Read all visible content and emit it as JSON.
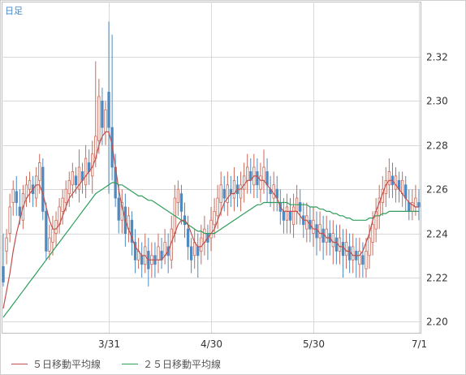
{
  "period_label": "日足",
  "legend": [
    {
      "label": "５日移動平均線",
      "color": "#c0504d"
    },
    {
      "label": "２５日移動平均線",
      "color": "#2e9e5a"
    }
  ],
  "colors": {
    "up": "#c86a5a",
    "down": "#4f8ac0",
    "ma5": "#c0504d",
    "ma25": "#2e9e5a",
    "grid": "#d9d9d9",
    "axis_text": "#333333"
  },
  "chart_data": {
    "type": "candlestick",
    "ylim": [
      2.195,
      2.345
    ],
    "yticks": [
      "2.20",
      "2.22",
      "2.24",
      "2.26",
      "2.28",
      "2.30",
      "2.32"
    ],
    "xticks": [
      {
        "label": "3/31",
        "index": 32
      },
      {
        "label": "4/30",
        "index": 63
      },
      {
        "label": "5/30",
        "index": 94
      },
      {
        "label": "7/1",
        "index": 126
      }
    ],
    "candles": [
      [
        2.225,
        2.218,
        2.24,
        2.216
      ],
      [
        2.232,
        2.238,
        2.242,
        2.226
      ],
      [
        2.24,
        2.252,
        2.258,
        2.236
      ],
      [
        2.254,
        2.26,
        2.264,
        2.248
      ],
      [
        2.259,
        2.254,
        2.266,
        2.248
      ],
      [
        2.252,
        2.248,
        2.26,
        2.244
      ],
      [
        2.246,
        2.258,
        2.262,
        2.242
      ],
      [
        2.256,
        2.262,
        2.266,
        2.252
      ],
      [
        2.26,
        2.264,
        2.268,
        2.254
      ],
      [
        2.262,
        2.258,
        2.266,
        2.252
      ],
      [
        2.256,
        2.266,
        2.27,
        2.252
      ],
      [
        2.264,
        2.272,
        2.276,
        2.258
      ],
      [
        2.27,
        2.25,
        2.274,
        2.246
      ],
      [
        2.25,
        2.232,
        2.254,
        2.228
      ],
      [
        2.232,
        2.238,
        2.244,
        2.228
      ],
      [
        2.236,
        2.242,
        2.248,
        2.23
      ],
      [
        2.24,
        2.246,
        2.25,
        2.234
      ],
      [
        2.244,
        2.252,
        2.256,
        2.24
      ],
      [
        2.25,
        2.256,
        2.26,
        2.244
      ],
      [
        2.254,
        2.26,
        2.264,
        2.25
      ],
      [
        2.258,
        2.264,
        2.268,
        2.252
      ],
      [
        2.262,
        2.268,
        2.272,
        2.256
      ],
      [
        2.266,
        2.262,
        2.27,
        2.258
      ],
      [
        2.26,
        2.27,
        2.278,
        2.254
      ],
      [
        2.268,
        2.264,
        2.272,
        2.258
      ],
      [
        2.262,
        2.274,
        2.28,
        2.256
      ],
      [
        2.272,
        2.268,
        2.278,
        2.262
      ],
      [
        2.266,
        2.276,
        2.282,
        2.258
      ],
      [
        2.274,
        2.284,
        2.318,
        2.27
      ],
      [
        2.282,
        2.302,
        2.31,
        2.276
      ],
      [
        2.3,
        2.288,
        2.306,
        2.28
      ],
      [
        2.286,
        2.296,
        2.3,
        2.28
      ],
      [
        2.304,
        2.288,
        2.336,
        2.258
      ],
      [
        2.288,
        2.27,
        2.33,
        2.264
      ],
      [
        2.27,
        2.256,
        2.276,
        2.252
      ],
      [
        2.256,
        2.246,
        2.262,
        2.24
      ],
      [
        2.246,
        2.254,
        2.26,
        2.24
      ],
      [
        2.252,
        2.24,
        2.258,
        2.234
      ],
      [
        2.242,
        2.248,
        2.252,
        2.236
      ],
      [
        2.246,
        2.236,
        2.25,
        2.23
      ],
      [
        2.236,
        2.228,
        2.242,
        2.222
      ],
      [
        2.228,
        2.232,
        2.238,
        2.224
      ],
      [
        2.23,
        2.226,
        2.236,
        2.22
      ],
      [
        2.226,
        2.234,
        2.24,
        2.222
      ],
      [
        2.232,
        2.224,
        2.238,
        2.216
      ],
      [
        2.226,
        2.23,
        2.236,
        2.22
      ],
      [
        2.23,
        2.226,
        2.236,
        2.22
      ],
      [
        2.228,
        2.234,
        2.24,
        2.222
      ],
      [
        2.232,
        2.228,
        2.238,
        2.224
      ],
      [
        2.23,
        2.236,
        2.242,
        2.226
      ],
      [
        2.234,
        2.23,
        2.24,
        2.222
      ],
      [
        2.228,
        2.242,
        2.248,
        2.224
      ],
      [
        2.24,
        2.256,
        2.262,
        2.236
      ],
      [
        2.254,
        2.26,
        2.264,
        2.248
      ],
      [
        2.258,
        2.25,
        2.262,
        2.244
      ],
      [
        2.248,
        2.244,
        2.254,
        2.238
      ],
      [
        2.242,
        2.234,
        2.248,
        2.228
      ],
      [
        2.234,
        2.228,
        2.238,
        2.222
      ],
      [
        2.23,
        2.236,
        2.242,
        2.224
      ],
      [
        2.234,
        2.23,
        2.24,
        2.22
      ],
      [
        2.232,
        2.238,
        2.244,
        2.226
      ],
      [
        2.236,
        2.242,
        2.248,
        2.23
      ],
      [
        2.24,
        2.236,
        2.244,
        2.228
      ],
      [
        2.238,
        2.246,
        2.252,
        2.232
      ],
      [
        2.244,
        2.25,
        2.256,
        2.238
      ],
      [
        2.248,
        2.256,
        2.262,
        2.242
      ],
      [
        2.254,
        2.262,
        2.268,
        2.248
      ],
      [
        2.26,
        2.256,
        2.266,
        2.25
      ],
      [
        2.254,
        2.262,
        2.268,
        2.248
      ],
      [
        2.26,
        2.258,
        2.266,
        2.252
      ],
      [
        2.256,
        2.264,
        2.27,
        2.25
      ],
      [
        2.262,
        2.258,
        2.266,
        2.252
      ],
      [
        2.256,
        2.262,
        2.268,
        2.25
      ],
      [
        2.26,
        2.266,
        2.272,
        2.254
      ],
      [
        2.264,
        2.27,
        2.276,
        2.258
      ],
      [
        2.268,
        2.264,
        2.274,
        2.258
      ],
      [
        2.262,
        2.27,
        2.276,
        2.256
      ],
      [
        2.268,
        2.262,
        2.274,
        2.256
      ],
      [
        2.26,
        2.266,
        2.272,
        2.254
      ],
      [
        2.264,
        2.27,
        2.278,
        2.258
      ],
      [
        2.268,
        2.262,
        2.274,
        2.254
      ],
      [
        2.26,
        2.258,
        2.266,
        2.252
      ],
      [
        2.256,
        2.262,
        2.268,
        2.25
      ],
      [
        2.26,
        2.256,
        2.266,
        2.25
      ],
      [
        2.254,
        2.25,
        2.26,
        2.244
      ],
      [
        2.25,
        2.246,
        2.256,
        2.24
      ],
      [
        2.246,
        2.252,
        2.258,
        2.24
      ],
      [
        2.25,
        2.246,
        2.256,
        2.24
      ],
      [
        2.244,
        2.252,
        2.258,
        2.238
      ],
      [
        2.25,
        2.256,
        2.262,
        2.244
      ],
      [
        2.254,
        2.25,
        2.26,
        2.244
      ],
      [
        2.248,
        2.244,
        2.254,
        2.238
      ],
      [
        2.242,
        2.248,
        2.254,
        2.236
      ],
      [
        2.246,
        2.242,
        2.252,
        2.236
      ],
      [
        2.24,
        2.246,
        2.252,
        2.234
      ],
      [
        2.244,
        2.238,
        2.25,
        2.23
      ],
      [
        2.238,
        2.244,
        2.25,
        2.232
      ],
      [
        2.242,
        2.236,
        2.248,
        2.228
      ],
      [
        2.236,
        2.242,
        2.248,
        2.23
      ],
      [
        2.24,
        2.236,
        2.246,
        2.23
      ],
      [
        2.234,
        2.24,
        2.246,
        2.226
      ],
      [
        2.238,
        2.232,
        2.244,
        2.226
      ],
      [
        2.232,
        2.238,
        2.244,
        2.226
      ],
      [
        2.236,
        2.23,
        2.242,
        2.22
      ],
      [
        2.23,
        2.236,
        2.242,
        2.224
      ],
      [
        2.234,
        2.228,
        2.24,
        2.222
      ],
      [
        2.228,
        2.234,
        2.24,
        2.222
      ],
      [
        2.232,
        2.228,
        2.238,
        2.22
      ],
      [
        2.226,
        2.232,
        2.238,
        2.22
      ],
      [
        2.23,
        2.226,
        2.236,
        2.22
      ],
      [
        2.224,
        2.232,
        2.238,
        2.22
      ],
      [
        2.23,
        2.238,
        2.244,
        2.224
      ],
      [
        2.236,
        2.244,
        2.25,
        2.23
      ],
      [
        2.242,
        2.25,
        2.256,
        2.236
      ],
      [
        2.248,
        2.256,
        2.262,
        2.242
      ],
      [
        2.254,
        2.26,
        2.266,
        2.248
      ],
      [
        2.258,
        2.264,
        2.27,
        2.252
      ],
      [
        2.262,
        2.268,
        2.274,
        2.256
      ],
      [
        2.266,
        2.262,
        2.272,
        2.256
      ],
      [
        2.26,
        2.266,
        2.27,
        2.254
      ],
      [
        2.264,
        2.26,
        2.268,
        2.254
      ],
      [
        2.258,
        2.264,
        2.268,
        2.252
      ],
      [
        2.262,
        2.256,
        2.266,
        2.25
      ],
      [
        2.254,
        2.25,
        2.26,
        2.246
      ],
      [
        2.25,
        2.254,
        2.26,
        2.246
      ],
      [
        2.252,
        2.256,
        2.262,
        2.248
      ],
      [
        2.254,
        2.252,
        2.26,
        2.246
      ]
    ],
    "ma5": [
      2.206,
      2.214,
      2.222,
      2.232,
      2.24,
      2.246,
      2.252,
      2.256,
      2.258,
      2.26,
      2.262,
      2.262,
      2.258,
      2.252,
      2.246,
      2.242,
      2.242,
      2.244,
      2.248,
      2.252,
      2.256,
      2.258,
      2.26,
      2.262,
      2.264,
      2.266,
      2.268,
      2.27,
      2.274,
      2.28,
      2.284,
      2.286,
      2.286,
      2.28,
      2.27,
      2.26,
      2.252,
      2.246,
      2.242,
      2.238,
      2.234,
      2.232,
      2.23,
      2.23,
      2.228,
      2.228,
      2.228,
      2.228,
      2.228,
      2.23,
      2.232,
      2.236,
      2.24,
      2.244,
      2.246,
      2.246,
      2.244,
      2.24,
      2.236,
      2.234,
      2.234,
      2.236,
      2.238,
      2.24,
      2.242,
      2.246,
      2.25,
      2.254,
      2.256,
      2.258,
      2.258,
      2.26,
      2.26,
      2.262,
      2.264,
      2.264,
      2.266,
      2.266,
      2.264,
      2.264,
      2.262,
      2.26,
      2.258,
      2.256,
      2.252,
      2.25,
      2.25,
      2.25,
      2.25,
      2.25,
      2.248,
      2.246,
      2.246,
      2.244,
      2.242,
      2.242,
      2.24,
      2.24,
      2.238,
      2.238,
      2.236,
      2.236,
      2.234,
      2.234,
      2.232,
      2.232,
      2.23,
      2.23,
      2.23,
      2.232,
      2.236,
      2.24,
      2.246,
      2.25,
      2.254,
      2.258,
      2.262,
      2.264,
      2.264,
      2.262,
      2.26,
      2.258,
      2.256,
      2.254,
      2.253,
      2.252,
      2.252
    ],
    "ma25": [
      2.202,
      2.204,
      2.206,
      2.208,
      2.21,
      2.212,
      2.214,
      2.216,
      2.218,
      2.22,
      2.222,
      2.224,
      2.226,
      2.228,
      2.23,
      2.232,
      2.234,
      2.236,
      2.238,
      2.24,
      2.242,
      2.244,
      2.246,
      2.248,
      2.25,
      2.252,
      2.254,
      2.256,
      2.258,
      2.259,
      2.26,
      2.261,
      2.262,
      2.263,
      2.263,
      2.262,
      2.262,
      2.261,
      2.26,
      2.259,
      2.258,
      2.257,
      2.257,
      2.256,
      2.255,
      2.255,
      2.254,
      2.253,
      2.252,
      2.251,
      2.25,
      2.249,
      2.248,
      2.247,
      2.246,
      2.245,
      2.244,
      2.243,
      2.242,
      2.241,
      2.241,
      2.24,
      2.24,
      2.24,
      2.24,
      2.241,
      2.242,
      2.243,
      2.244,
      2.245,
      2.246,
      2.247,
      2.248,
      2.249,
      2.25,
      2.251,
      2.252,
      2.253,
      2.253,
      2.254,
      2.254,
      2.254,
      2.254,
      2.254,
      2.254,
      2.254,
      2.254,
      2.253,
      2.253,
      2.253,
      2.253,
      2.253,
      2.253,
      2.252,
      2.252,
      2.252,
      2.251,
      2.251,
      2.25,
      2.25,
      2.249,
      2.249,
      2.248,
      2.248,
      2.247,
      2.247,
      2.246,
      2.246,
      2.246,
      2.246,
      2.246,
      2.247,
      2.247,
      2.248,
      2.248,
      2.249,
      2.249,
      2.25,
      2.25,
      2.25,
      2.25,
      2.25,
      2.25,
      2.25,
      2.25,
      2.25,
      2.25
    ]
  }
}
